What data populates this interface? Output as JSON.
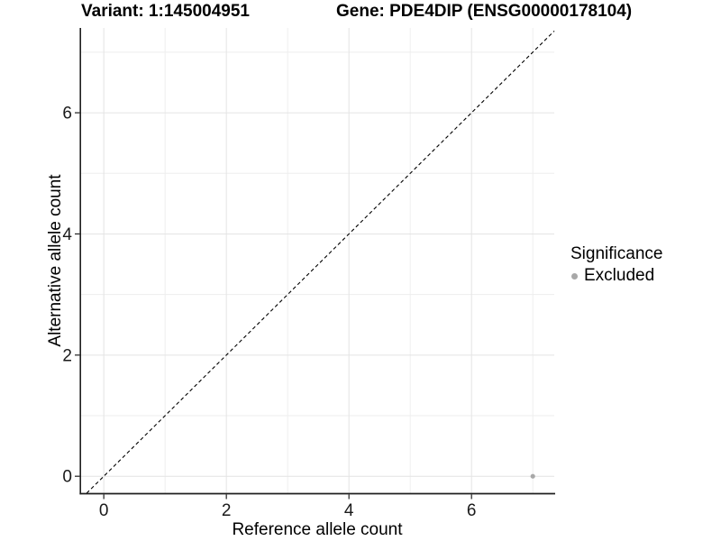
{
  "chart_data": {
    "type": "scatter",
    "titles": {
      "left": "Variant: 1:145004951",
      "right": "Gene: PDE4DIP (ENSG00000178104)"
    },
    "xlabel": "Reference allele count",
    "ylabel": "Alternative allele count",
    "x_ticks": [
      0,
      2,
      4,
      6
    ],
    "y_ticks": [
      0,
      2,
      4,
      6
    ],
    "x_minor": [
      1,
      3,
      5,
      7
    ],
    "y_minor": [
      1,
      3,
      5,
      7
    ],
    "x_domain": [
      -0.37,
      7.35
    ],
    "y_domain": [
      -0.28,
      7.4
    ],
    "identity_line": {
      "slope": 1,
      "intercept": 0,
      "style": "dashed",
      "color": "#000000"
    },
    "series": [
      {
        "name": "Excluded",
        "color": "#a8a8a8",
        "points": [
          {
            "x": 7,
            "y": 0
          }
        ]
      }
    ],
    "legend": {
      "title": "Significance",
      "position": "right",
      "items": [
        {
          "label": "Excluded",
          "color": "#a8a8a8"
        }
      ]
    },
    "grid": {
      "show": true,
      "major_color": "#e4e4e4",
      "minor_color": "#eeeeee"
    },
    "axis_color": "#1f1f1f",
    "text_color": "#1a1a1a",
    "background": "#ffffff"
  }
}
